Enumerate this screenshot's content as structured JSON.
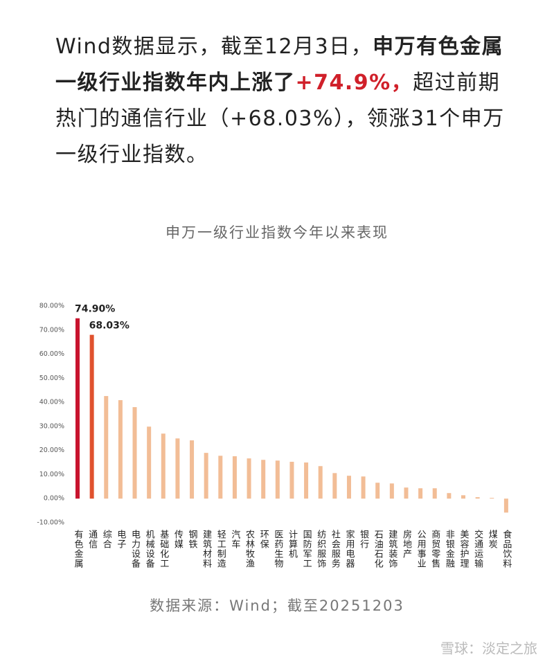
{
  "intro": {
    "parts": [
      {
        "text": "Wind数据显示，截至12月3日，",
        "style": "normal"
      },
      {
        "text": "申万有色金属一级行业指数年内上涨了",
        "style": "bold"
      },
      {
        "text": "+74.9%，",
        "style": "highlight"
      },
      {
        "text": "超过前期热门的通信行业（+68.03%），领涨31个申万一级行业指数。",
        "style": "normal"
      }
    ]
  },
  "chart_data": {
    "type": "bar",
    "title": "申万一级行业指数今年以来表现",
    "categories": [
      "有色金属",
      "通信",
      "综合",
      "电子",
      "电力设备",
      "机械设备",
      "基础化工",
      "传媒",
      "钢铁",
      "建筑材料",
      "轻工制造",
      "汽车",
      "农林牧渔",
      "环保",
      "医药生物",
      "计算机",
      "国防军工",
      "纺织服饰",
      "社会服务",
      "家用电器",
      "银行",
      "石油石化",
      "建筑装饰",
      "房地产",
      "公用事业",
      "商贸零售",
      "非银金融",
      "美容护理",
      "交通运输",
      "煤炭",
      "食品饮料"
    ],
    "values": [
      74.9,
      68.03,
      42.6,
      40.9,
      38.0,
      29.9,
      27.0,
      25.0,
      24.2,
      19.0,
      17.8,
      17.6,
      16.7,
      16.1,
      15.8,
      15.3,
      15.0,
      13.5,
      10.6,
      9.5,
      9.2,
      6.6,
      6.3,
      4.6,
      4.3,
      4.3,
      2.3,
      1.4,
      0.6,
      0.3,
      -5.8
    ],
    "value_labels": [
      "74.90%",
      "68.03%",
      null,
      null,
      null,
      null,
      null,
      null,
      null,
      null,
      null,
      null,
      null,
      null,
      null,
      null,
      null,
      null,
      null,
      null,
      null,
      null,
      null,
      null,
      null,
      null,
      null,
      null,
      null,
      null,
      null
    ],
    "colors": [
      "#c8142e",
      "#e0522e",
      "#f2bd96",
      "#f2bd96",
      "#f2bd96",
      "#f2bd96",
      "#f2bd96",
      "#f2bd96",
      "#f2bd96",
      "#f2bd96",
      "#f2bd96",
      "#f2bd96",
      "#f2bd96",
      "#f2bd96",
      "#f2bd96",
      "#f2bd96",
      "#f2bd96",
      "#f2bd96",
      "#f2bd96",
      "#f2bd96",
      "#f2bd96",
      "#f2bd96",
      "#f2bd96",
      "#f2bd96",
      "#f2bd96",
      "#f2bd96",
      "#f2bd96",
      "#f2bd96",
      "#f2bd96",
      "#f2bd96",
      "#f2bd96"
    ],
    "ylim": [
      -10,
      80
    ],
    "yticks": [
      {
        "value": -10,
        "label": "-10.00%"
      },
      {
        "value": 0,
        "label": "0.00%"
      },
      {
        "value": 10,
        "label": "10.00%"
      },
      {
        "value": 20,
        "label": "20.00%"
      },
      {
        "value": 30,
        "label": "30.00%"
      },
      {
        "value": 40,
        "label": "40.00%"
      },
      {
        "value": 50,
        "label": "50.00%"
      },
      {
        "value": 60,
        "label": "60.00%"
      },
      {
        "value": 70,
        "label": "70.00%"
      },
      {
        "value": 80,
        "label": "80.00%"
      }
    ],
    "grid": false,
    "source": "数据来源：Wind；截至20251203"
  },
  "watermark": "雪球：淡定之旅"
}
